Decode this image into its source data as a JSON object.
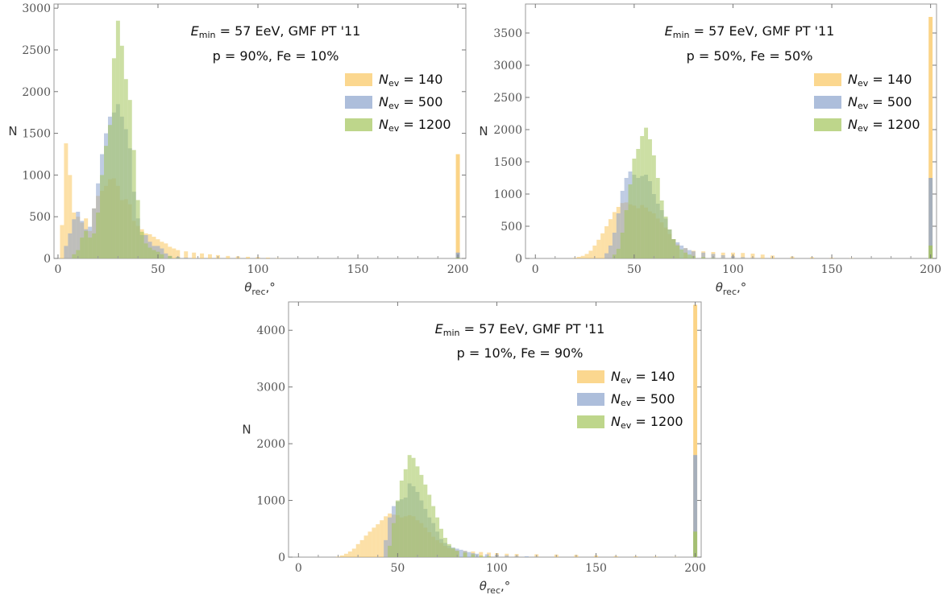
{
  "colors": {
    "Nev140": "#f9c65f",
    "Nev500": "#8aa3cc",
    "Nev1200": "#a3c45a",
    "frame": "#999999"
  },
  "chart_data": [
    {
      "type": "histogram",
      "title": "",
      "annotations": [
        {
          "E": "E",
          "min": "min",
          "rest": " = 57 EeV, GMF PT '11"
        },
        {
          "text": "p = 90%, Fe = 10%"
        }
      ],
      "xlabel": {
        "theta": "θ",
        "sub": "rec",
        "suffix": ",°"
      },
      "ylabel": "N",
      "xlim": [
        -2,
        204
      ],
      "ylim": [
        0,
        3050
      ],
      "xticks": [
        0,
        50,
        100,
        150,
        200
      ],
      "yticks": [
        0,
        500,
        1000,
        1500,
        2000,
        2500,
        3000
      ],
      "bin_width": 2,
      "legend": [
        "Nev140",
        "Nev500",
        "Nev1200"
      ],
      "legend_labels": [
        {
          "N": "N",
          "sub": "ev",
          "rest": " = 140"
        },
        {
          "N": "N",
          "sub": "ev",
          "rest": " = 500"
        },
        {
          "N": "N",
          "sub": "ev",
          "rest": " = 1200"
        }
      ],
      "series": [
        {
          "key": "Nev140",
          "overflow": 1250,
          "x": [
            2,
            4,
            6,
            8,
            10,
            12,
            14,
            16,
            18,
            20,
            22,
            24,
            26,
            28,
            30,
            32,
            34,
            36,
            38,
            40,
            42,
            44,
            46,
            48,
            50,
            52,
            54,
            56,
            58,
            60,
            64,
            68,
            72,
            76,
            80,
            85,
            90,
            95,
            100,
            105,
            110
          ],
          "values": [
            400,
            1380,
            1000,
            550,
            500,
            430,
            480,
            330,
            600,
            750,
            810,
            870,
            950,
            960,
            870,
            700,
            710,
            650,
            450,
            390,
            350,
            300,
            290,
            260,
            230,
            200,
            180,
            140,
            120,
            100,
            85,
            70,
            60,
            50,
            40,
            30,
            25,
            20,
            15,
            10,
            5
          ]
        },
        {
          "key": "Nev500",
          "overflow": 70,
          "x": [
            4,
            6,
            8,
            10,
            12,
            14,
            16,
            18,
            20,
            22,
            24,
            26,
            28,
            30,
            32,
            34,
            36,
            38,
            40,
            42,
            44,
            46,
            48,
            50,
            52,
            54,
            56,
            60,
            64
          ],
          "values": [
            150,
            300,
            470,
            560,
            450,
            350,
            380,
            600,
            900,
            1250,
            1500,
            1700,
            1750,
            1850,
            1700,
            1550,
            1320,
            800,
            480,
            280,
            280,
            200,
            150,
            150,
            120,
            60,
            30,
            20,
            10
          ]
        },
        {
          "key": "Nev1200",
          "overflow": 10,
          "x": [
            8,
            10,
            12,
            14,
            16,
            18,
            20,
            22,
            24,
            26,
            28,
            30,
            32,
            34,
            36,
            38,
            40,
            42,
            44,
            46,
            48,
            50,
            52,
            56,
            60
          ],
          "values": [
            50,
            100,
            250,
            330,
            250,
            300,
            550,
            1000,
            1350,
            1600,
            2400,
            2850,
            2550,
            2150,
            1900,
            1300,
            700,
            320,
            180,
            130,
            100,
            80,
            50,
            30,
            10
          ]
        }
      ]
    },
    {
      "type": "histogram",
      "title": "",
      "annotations": [
        {
          "E": "E",
          "min": "min",
          "rest": " = 57 EeV, GMF PT '11"
        },
        {
          "text": "p = 50%, Fe = 50%"
        }
      ],
      "xlabel": {
        "theta": "θ",
        "sub": "rec",
        "suffix": ",°"
      },
      "ylabel": "N",
      "xlim": [
        -5,
        203
      ],
      "ylim": [
        0,
        3950
      ],
      "xticks": [
        0,
        50,
        100,
        150,
        200
      ],
      "yticks": [
        0,
        500,
        1000,
        1500,
        2000,
        2500,
        3000,
        3500
      ],
      "bin_width": 2,
      "legend": [
        "Nev140",
        "Nev500",
        "Nev1200"
      ],
      "legend_labels": [
        {
          "N": "N",
          "sub": "ev",
          "rest": " = 140"
        },
        {
          "N": "N",
          "sub": "ev",
          "rest": " = 500"
        },
        {
          "N": "N",
          "sub": "ev",
          "rest": " = 1200"
        }
      ],
      "series": [
        {
          "key": "Nev140",
          "overflow": 3750,
          "x": [
            20,
            22,
            24,
            26,
            28,
            30,
            32,
            34,
            36,
            38,
            40,
            42,
            44,
            46,
            48,
            50,
            52,
            54,
            56,
            58,
            60,
            62,
            64,
            66,
            68,
            70,
            72,
            76,
            80,
            85,
            90,
            95,
            100,
            105,
            110,
            115,
            120,
            130,
            140,
            150,
            160
          ],
          "values": [
            10,
            25,
            40,
            70,
            120,
            200,
            290,
            390,
            500,
            610,
            720,
            800,
            860,
            870,
            840,
            820,
            780,
            830,
            790,
            730,
            700,
            620,
            560,
            480,
            380,
            300,
            220,
            160,
            120,
            110,
            100,
            90,
            90,
            85,
            75,
            60,
            45,
            30,
            20,
            10,
            5
          ]
        },
        {
          "key": "Nev500",
          "overflow": 1250,
          "x": [
            36,
            38,
            40,
            42,
            44,
            46,
            48,
            50,
            52,
            54,
            56,
            58,
            60,
            62,
            64,
            66,
            68,
            70,
            72,
            74,
            76,
            78,
            80,
            85,
            90,
            95,
            100,
            105,
            110
          ],
          "values": [
            80,
            200,
            400,
            700,
            1050,
            1250,
            1350,
            1300,
            1250,
            1280,
            1300,
            1200,
            1000,
            850,
            750,
            620,
            450,
            300,
            250,
            200,
            160,
            130,
            110,
            90,
            70,
            50,
            35,
            20,
            10
          ]
        },
        {
          "key": "Nev1200",
          "overflow": 200,
          "x": [
            40,
            42,
            44,
            46,
            48,
            50,
            52,
            54,
            56,
            58,
            60,
            62,
            64,
            66,
            68,
            70,
            72,
            74,
            76,
            78,
            80,
            85,
            90
          ],
          "values": [
            60,
            150,
            400,
            750,
            1150,
            1550,
            1700,
            1900,
            2030,
            1850,
            1600,
            1250,
            900,
            650,
            450,
            300,
            200,
            140,
            90,
            60,
            40,
            20,
            10
          ]
        }
      ]
    },
    {
      "type": "histogram",
      "title": "",
      "annotations": [
        {
          "E": "E",
          "min": "min",
          "rest": " = 57 EeV, GMF PT '11"
        },
        {
          "text": "p = 10%, Fe = 90%"
        }
      ],
      "xlabel": {
        "theta": "θ",
        "sub": "rec",
        "suffix": ",°"
      },
      "ylabel": "N",
      "xlim": [
        -5,
        203
      ],
      "ylim": [
        0,
        4500
      ],
      "xticks": [
        0,
        50,
        100,
        150,
        200
      ],
      "yticks": [
        0,
        1000,
        2000,
        3000,
        4000
      ],
      "bin_width": 2,
      "legend": [
        "Nev140",
        "Nev500",
        "Nev1200"
      ],
      "legend_labels": [
        {
          "N": "N",
          "sub": "ev",
          "rest": " = 140"
        },
        {
          "N": "N",
          "sub": "ev",
          "rest": " = 500"
        },
        {
          "N": "N",
          "sub": "ev",
          "rest": " = 1200"
        }
      ],
      "series": [
        {
          "key": "Nev140",
          "overflow": 4450,
          "x": [
            20,
            22,
            24,
            26,
            28,
            30,
            32,
            34,
            36,
            38,
            40,
            42,
            44,
            46,
            48,
            50,
            52,
            54,
            56,
            58,
            60,
            62,
            64,
            66,
            68,
            70,
            72,
            74,
            76,
            78,
            80,
            84,
            88,
            92,
            96,
            100,
            105,
            110,
            120,
            130,
            140,
            150,
            160,
            170,
            180,
            190
          ],
          "values": [
            10,
            30,
            60,
            100,
            150,
            230,
            300,
            380,
            450,
            520,
            580,
            650,
            720,
            770,
            750,
            740,
            700,
            720,
            740,
            720,
            650,
            600,
            520,
            440,
            360,
            300,
            250,
            200,
            160,
            140,
            120,
            110,
            100,
            90,
            80,
            70,
            60,
            55,
            50,
            45,
            40,
            30,
            20,
            15,
            10,
            5
          ]
        },
        {
          "key": "Nev500",
          "overflow": 1800,
          "x": [
            44,
            46,
            48,
            50,
            52,
            54,
            56,
            58,
            60,
            62,
            64,
            66,
            68,
            70,
            72,
            74,
            76,
            78,
            80,
            82,
            84,
            86,
            88,
            90,
            95,
            100,
            105,
            110,
            115,
            120
          ],
          "values": [
            300,
            700,
            900,
            980,
            1020,
            1050,
            1300,
            1250,
            1150,
            1000,
            850,
            700,
            600,
            450,
            320,
            250,
            200,
            170,
            150,
            130,
            110,
            90,
            70,
            60,
            50,
            40,
            30,
            20,
            15,
            10
          ]
        },
        {
          "key": "Nev1200",
          "overflow": 450,
          "x": [
            46,
            48,
            50,
            52,
            54,
            56,
            58,
            60,
            62,
            64,
            66,
            68,
            70,
            72,
            74,
            76,
            78,
            80,
            84,
            88,
            92,
            96
          ],
          "values": [
            200,
            600,
            1000,
            1350,
            1550,
            1800,
            1750,
            1600,
            1450,
            1280,
            1100,
            900,
            700,
            500,
            340,
            230,
            160,
            110,
            80,
            50,
            30,
            15
          ]
        }
      ]
    }
  ]
}
